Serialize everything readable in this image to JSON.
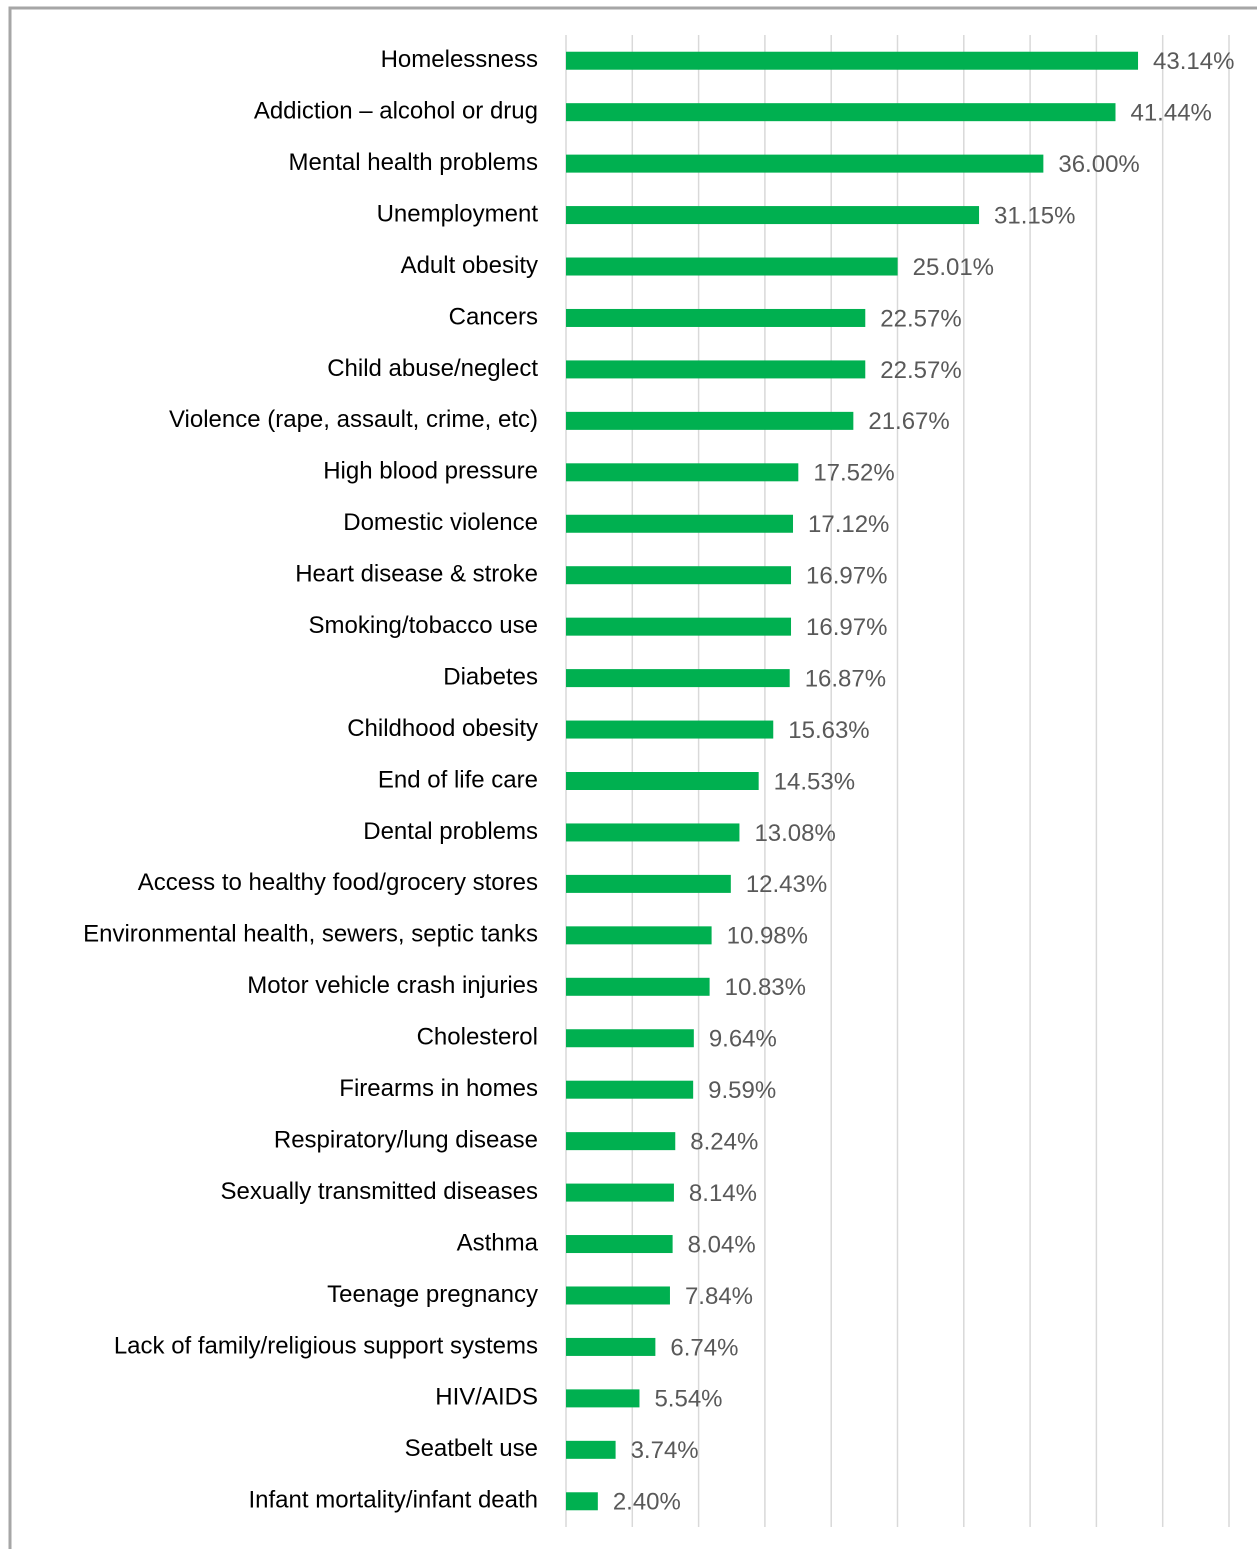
{
  "chart_data": {
    "type": "bar",
    "orientation": "horizontal",
    "categories": [
      "Homelessness",
      "Addiction – alcohol or drug",
      "Mental health problems",
      "Unemployment",
      "Adult obesity",
      "Cancers",
      "Child abuse/neglect",
      "Violence (rape, assault, crime, etc)",
      "High blood pressure",
      "Domestic violence",
      "Heart disease & stroke",
      "Smoking/tobacco use",
      "Diabetes",
      "Childhood obesity",
      "End of life care",
      "Dental problems",
      "Access to healthy food/grocery stores",
      "Environmental health, sewers, septic tanks",
      "Motor vehicle crash injuries",
      "Cholesterol",
      "Firearms in homes",
      "Respiratory/lung disease",
      "Sexually transmitted diseases",
      "Asthma",
      "Teenage pregnancy",
      "Lack of family/religious support systems",
      "HIV/AIDS",
      "Seatbelt use",
      "Infant mortality/infant death"
    ],
    "values": [
      43.14,
      41.44,
      36.0,
      31.15,
      25.01,
      22.57,
      22.57,
      21.67,
      17.52,
      17.12,
      16.97,
      16.97,
      16.87,
      15.63,
      14.53,
      13.08,
      12.43,
      10.98,
      10.83,
      9.64,
      9.59,
      8.24,
      8.14,
      8.04,
      7.84,
      6.74,
      5.54,
      3.74,
      2.4
    ],
    "value_labels": [
      "43.14%",
      "41.44%",
      "36.00%",
      "31.15%",
      "25.01%",
      "22.57%",
      "22.57%",
      "21.67%",
      "17.52%",
      "17.12%",
      "16.97%",
      "16.97%",
      "16.87%",
      "15.63%",
      "14.53%",
      "13.08%",
      "12.43%",
      "10.98%",
      "10.83%",
      "9.64%",
      "9.59%",
      "8.24%",
      "8.14%",
      "8.04%",
      "7.84%",
      "6.74%",
      "5.54%",
      "3.74%",
      "2.40%"
    ],
    "color": "#00b050",
    "xlim": [
      0,
      50
    ],
    "xticks": [
      0,
      5,
      10,
      15,
      20,
      25,
      30,
      35,
      40,
      45,
      50
    ],
    "grid": true
  }
}
